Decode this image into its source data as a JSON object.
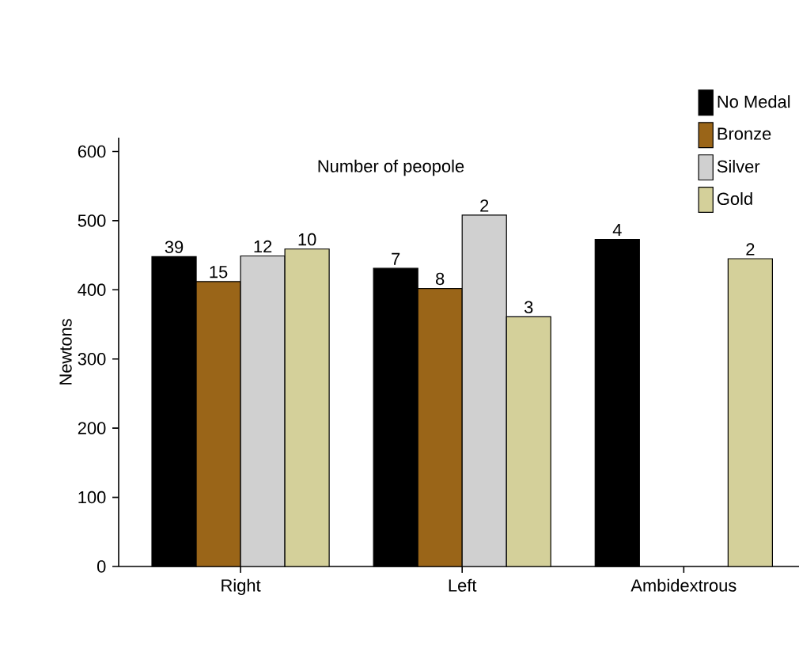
{
  "chart_data": {
    "type": "bar",
    "ylabel": "Newtons",
    "categories": [
      "Right",
      "Left",
      "Ambidextrous"
    ],
    "series": [
      {
        "name": "No Medal",
        "color": "#000000",
        "values": [
          448,
          431,
          473
        ]
      },
      {
        "name": "Bronze",
        "color": "#9a6518",
        "values": [
          412,
          402,
          null
        ]
      },
      {
        "name": "Silver",
        "color": "#d0d0d0",
        "values": [
          449,
          508,
          null
        ]
      },
      {
        "name": "Gold",
        "color": "#d4d09a",
        "values": [
          459,
          361,
          445
        ]
      }
    ],
    "ylim": [
      0,
      620
    ],
    "yticks": [
      0,
      100,
      200,
      300,
      400,
      500,
      600
    ],
    "grid": false,
    "legend": "top right",
    "annotations": [
      "Number of peopole",
      "39",
      "15",
      "12",
      "10",
      "7",
      "8",
      "2",
      "3",
      "4",
      "2"
    ]
  }
}
